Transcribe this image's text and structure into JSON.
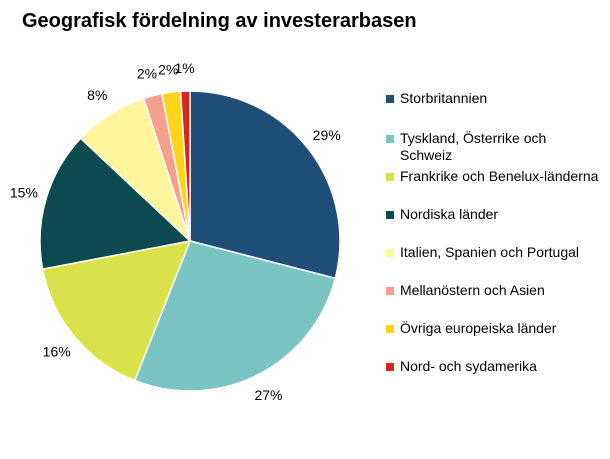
{
  "chart_data": {
    "type": "pie",
    "title": "Geografisk fördelning av investerarbasen",
    "categories": [
      "Storbritannien",
      "Tyskland, Österrike och Schweiz",
      "Frankrike och Benelux-länderna",
      "Nordiska länder",
      "Italien, Spanien och Portugal",
      "Mellanöstern och Asien",
      "Övriga europeiska länder",
      "Nord- och sydamerika"
    ],
    "values": [
      29,
      27,
      16,
      15,
      8,
      2,
      2,
      1
    ],
    "data_labels": [
      "29%",
      "27%",
      "16%",
      "15%",
      "8%",
      "2%",
      "2%",
      "1%"
    ],
    "colors": [
      "#1f4e79",
      "#7ac5c4",
      "#d9e24a",
      "#0d4a4f",
      "#fff59d",
      "#f4a08c",
      "#ffd51c",
      "#d7261e"
    ],
    "legend": "right"
  }
}
